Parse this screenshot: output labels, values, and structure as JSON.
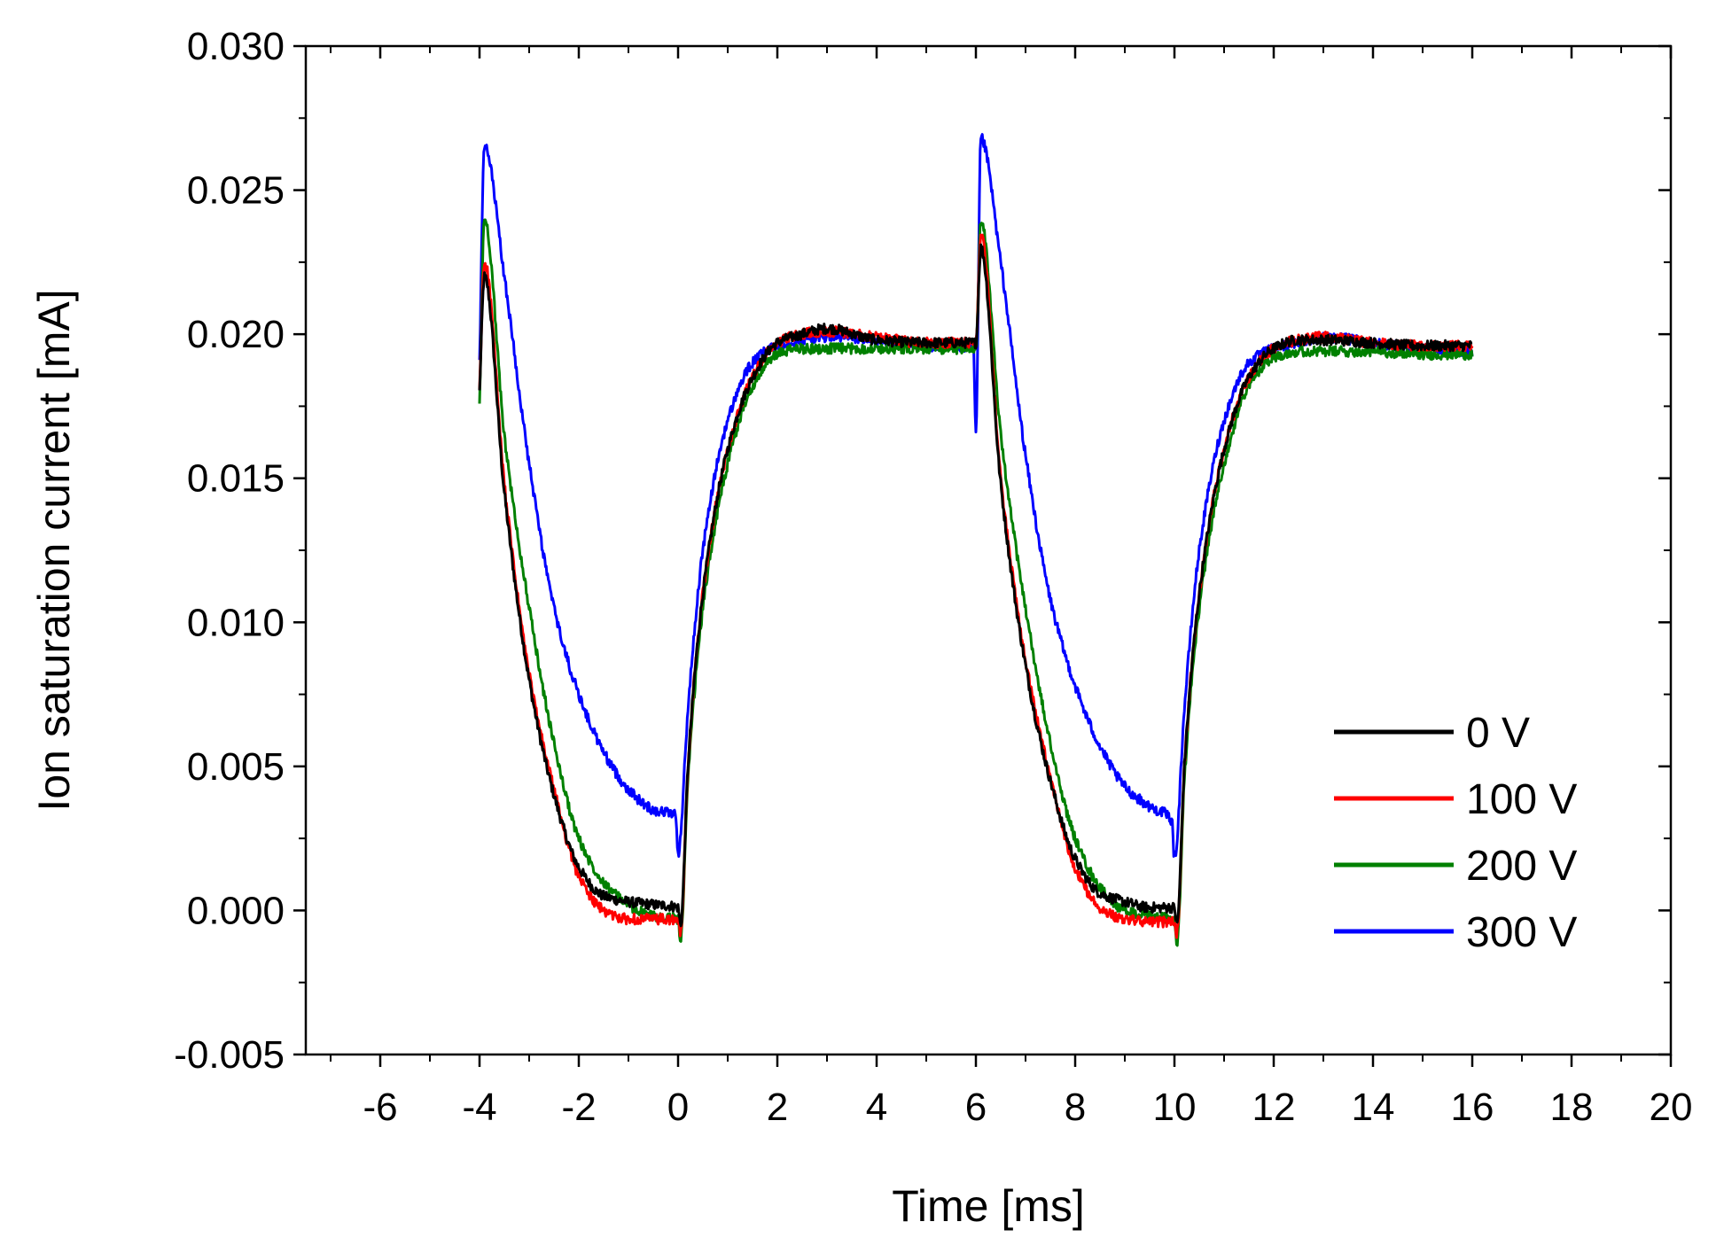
{
  "chart_data": {
    "type": "line",
    "title": "",
    "xlabel": "Time [ms]",
    "ylabel": "Ion saturation current [mA]",
    "xlim": [
      -7.5,
      20
    ],
    "ylim": [
      -0.005,
      0.03
    ],
    "xticks": [
      -6,
      -4,
      -2,
      0,
      2,
      4,
      6,
      8,
      10,
      12,
      14,
      16,
      18,
      20
    ],
    "xtick_labels": [
      "-6",
      "-4",
      "-2",
      "0",
      "2",
      "4",
      "6",
      "8",
      "10",
      "12",
      "14",
      "16",
      "18",
      "20"
    ],
    "yticks": [
      -0.005,
      0.0,
      0.005,
      0.01,
      0.015,
      0.02,
      0.025,
      0.03
    ],
    "ytick_labels": [
      "-0.005",
      "0.000",
      "0.005",
      "0.010",
      "0.015",
      "0.020",
      "0.025",
      "0.030"
    ],
    "grid": false,
    "legend_position": "bottom-right",
    "series": [
      {
        "name": "0 V",
        "color": "#000000",
        "x": [
          -4.0,
          -3.9,
          -3.5,
          -3.0,
          -2.5,
          -2.0,
          -1.5,
          -1.0,
          -0.5,
          0.0,
          0.05,
          0.2,
          0.5,
          1.0,
          1.5,
          2.0,
          2.5,
          3.0,
          4.0,
          5.0,
          6.0,
          6.1,
          6.5,
          7.0,
          7.5,
          8.0,
          8.5,
          9.0,
          9.5,
          10.0,
          10.05,
          10.2,
          10.5,
          11.0,
          11.5,
          12.0,
          12.5,
          13.0,
          14.0,
          15.0,
          16.0
        ],
        "y": [
          0.018,
          0.022,
          0.0145,
          0.008,
          0.004,
          0.0015,
          0.0005,
          0.0003,
          0.0002,
          0.0001,
          -0.0005,
          0.005,
          0.011,
          0.016,
          0.0185,
          0.0197,
          0.02,
          0.0202,
          0.0198,
          0.0197,
          0.0197,
          0.023,
          0.0148,
          0.0085,
          0.0045,
          0.0018,
          0.0006,
          0.0003,
          0.0001,
          0.0001,
          -0.0005,
          0.005,
          0.011,
          0.016,
          0.0185,
          0.0195,
          0.0198,
          0.0198,
          0.0197,
          0.0196,
          0.0196
        ]
      },
      {
        "name": "100 V",
        "color": "#ff0000",
        "x": [
          -4.0,
          -3.9,
          -3.5,
          -3.0,
          -2.5,
          -2.0,
          -1.5,
          -1.0,
          -0.5,
          0.0,
          0.05,
          0.2,
          0.5,
          1.0,
          1.5,
          2.0,
          2.5,
          3.0,
          4.0,
          5.0,
          6.0,
          6.1,
          6.5,
          7.0,
          7.5,
          8.0,
          8.5,
          9.0,
          9.5,
          10.0,
          10.05,
          10.2,
          10.5,
          11.0,
          11.5,
          12.0,
          12.5,
          13.0,
          14.0,
          15.0,
          16.0
        ],
        "y": [
          0.018,
          0.0225,
          0.0148,
          0.0082,
          0.0042,
          0.0012,
          0.0,
          -0.0003,
          -0.0003,
          -0.0004,
          -0.0008,
          0.005,
          0.011,
          0.016,
          0.0185,
          0.0197,
          0.02,
          0.0201,
          0.0199,
          0.0197,
          0.0197,
          0.0235,
          0.015,
          0.0087,
          0.0046,
          0.0015,
          0.0001,
          -0.0003,
          -0.0004,
          -0.0004,
          -0.0008,
          0.005,
          0.011,
          0.016,
          0.0185,
          0.0195,
          0.0198,
          0.0199,
          0.0197,
          0.0196,
          0.0196
        ]
      },
      {
        "name": "200 V",
        "color": "#008000",
        "x": [
          -4.0,
          -3.9,
          -3.5,
          -3.0,
          -2.5,
          -2.0,
          -1.5,
          -1.0,
          -0.5,
          0.0,
          0.05,
          0.2,
          0.5,
          1.0,
          1.5,
          2.0,
          2.5,
          3.0,
          4.0,
          5.0,
          6.0,
          6.1,
          6.5,
          7.0,
          7.5,
          8.0,
          8.5,
          9.0,
          9.5,
          10.0,
          10.05,
          10.2,
          10.5,
          11.0,
          11.5,
          12.0,
          12.5,
          13.0,
          14.0,
          15.0,
          16.0
        ],
        "y": [
          0.0175,
          0.024,
          0.0165,
          0.0105,
          0.0058,
          0.0025,
          0.001,
          0.0002,
          -0.0002,
          -0.0003,
          -0.001,
          0.0045,
          0.0105,
          0.0155,
          0.0182,
          0.0193,
          0.0195,
          0.0195,
          0.0195,
          0.0195,
          0.0195,
          0.024,
          0.0165,
          0.0105,
          0.0058,
          0.0025,
          0.0008,
          0.0,
          -0.0002,
          -0.0003,
          -0.0012,
          0.0045,
          0.0105,
          0.0155,
          0.0182,
          0.0192,
          0.0194,
          0.0194,
          0.0194,
          0.0193,
          0.0193
        ]
      },
      {
        "name": "300 V",
        "color": "#0000ff",
        "x": [
          -4.0,
          -3.9,
          -3.5,
          -3.0,
          -2.5,
          -2.0,
          -1.5,
          -1.0,
          -0.5,
          -0.05,
          0.0,
          0.2,
          0.5,
          1.0,
          1.5,
          2.0,
          2.5,
          3.0,
          4.0,
          5.0,
          5.95,
          6.0,
          6.1,
          6.5,
          7.0,
          7.5,
          8.0,
          8.5,
          9.0,
          9.5,
          9.95,
          10.0,
          10.2,
          10.5,
          11.0,
          11.5,
          12.0,
          12.5,
          13.0,
          14.0,
          15.0,
          16.0
        ],
        "y": [
          0.019,
          0.0265,
          0.022,
          0.0155,
          0.0105,
          0.0075,
          0.0055,
          0.0042,
          0.0035,
          0.0033,
          0.002,
          0.007,
          0.0125,
          0.017,
          0.019,
          0.0196,
          0.0198,
          0.0199,
          0.0198,
          0.0196,
          0.0195,
          0.0165,
          0.0268,
          0.0225,
          0.0158,
          0.0108,
          0.0078,
          0.0057,
          0.0043,
          0.0036,
          0.0031,
          0.0018,
          0.007,
          0.0125,
          0.017,
          0.019,
          0.0195,
          0.0197,
          0.0199,
          0.0197,
          0.0195,
          0.0194
        ]
      }
    ]
  }
}
